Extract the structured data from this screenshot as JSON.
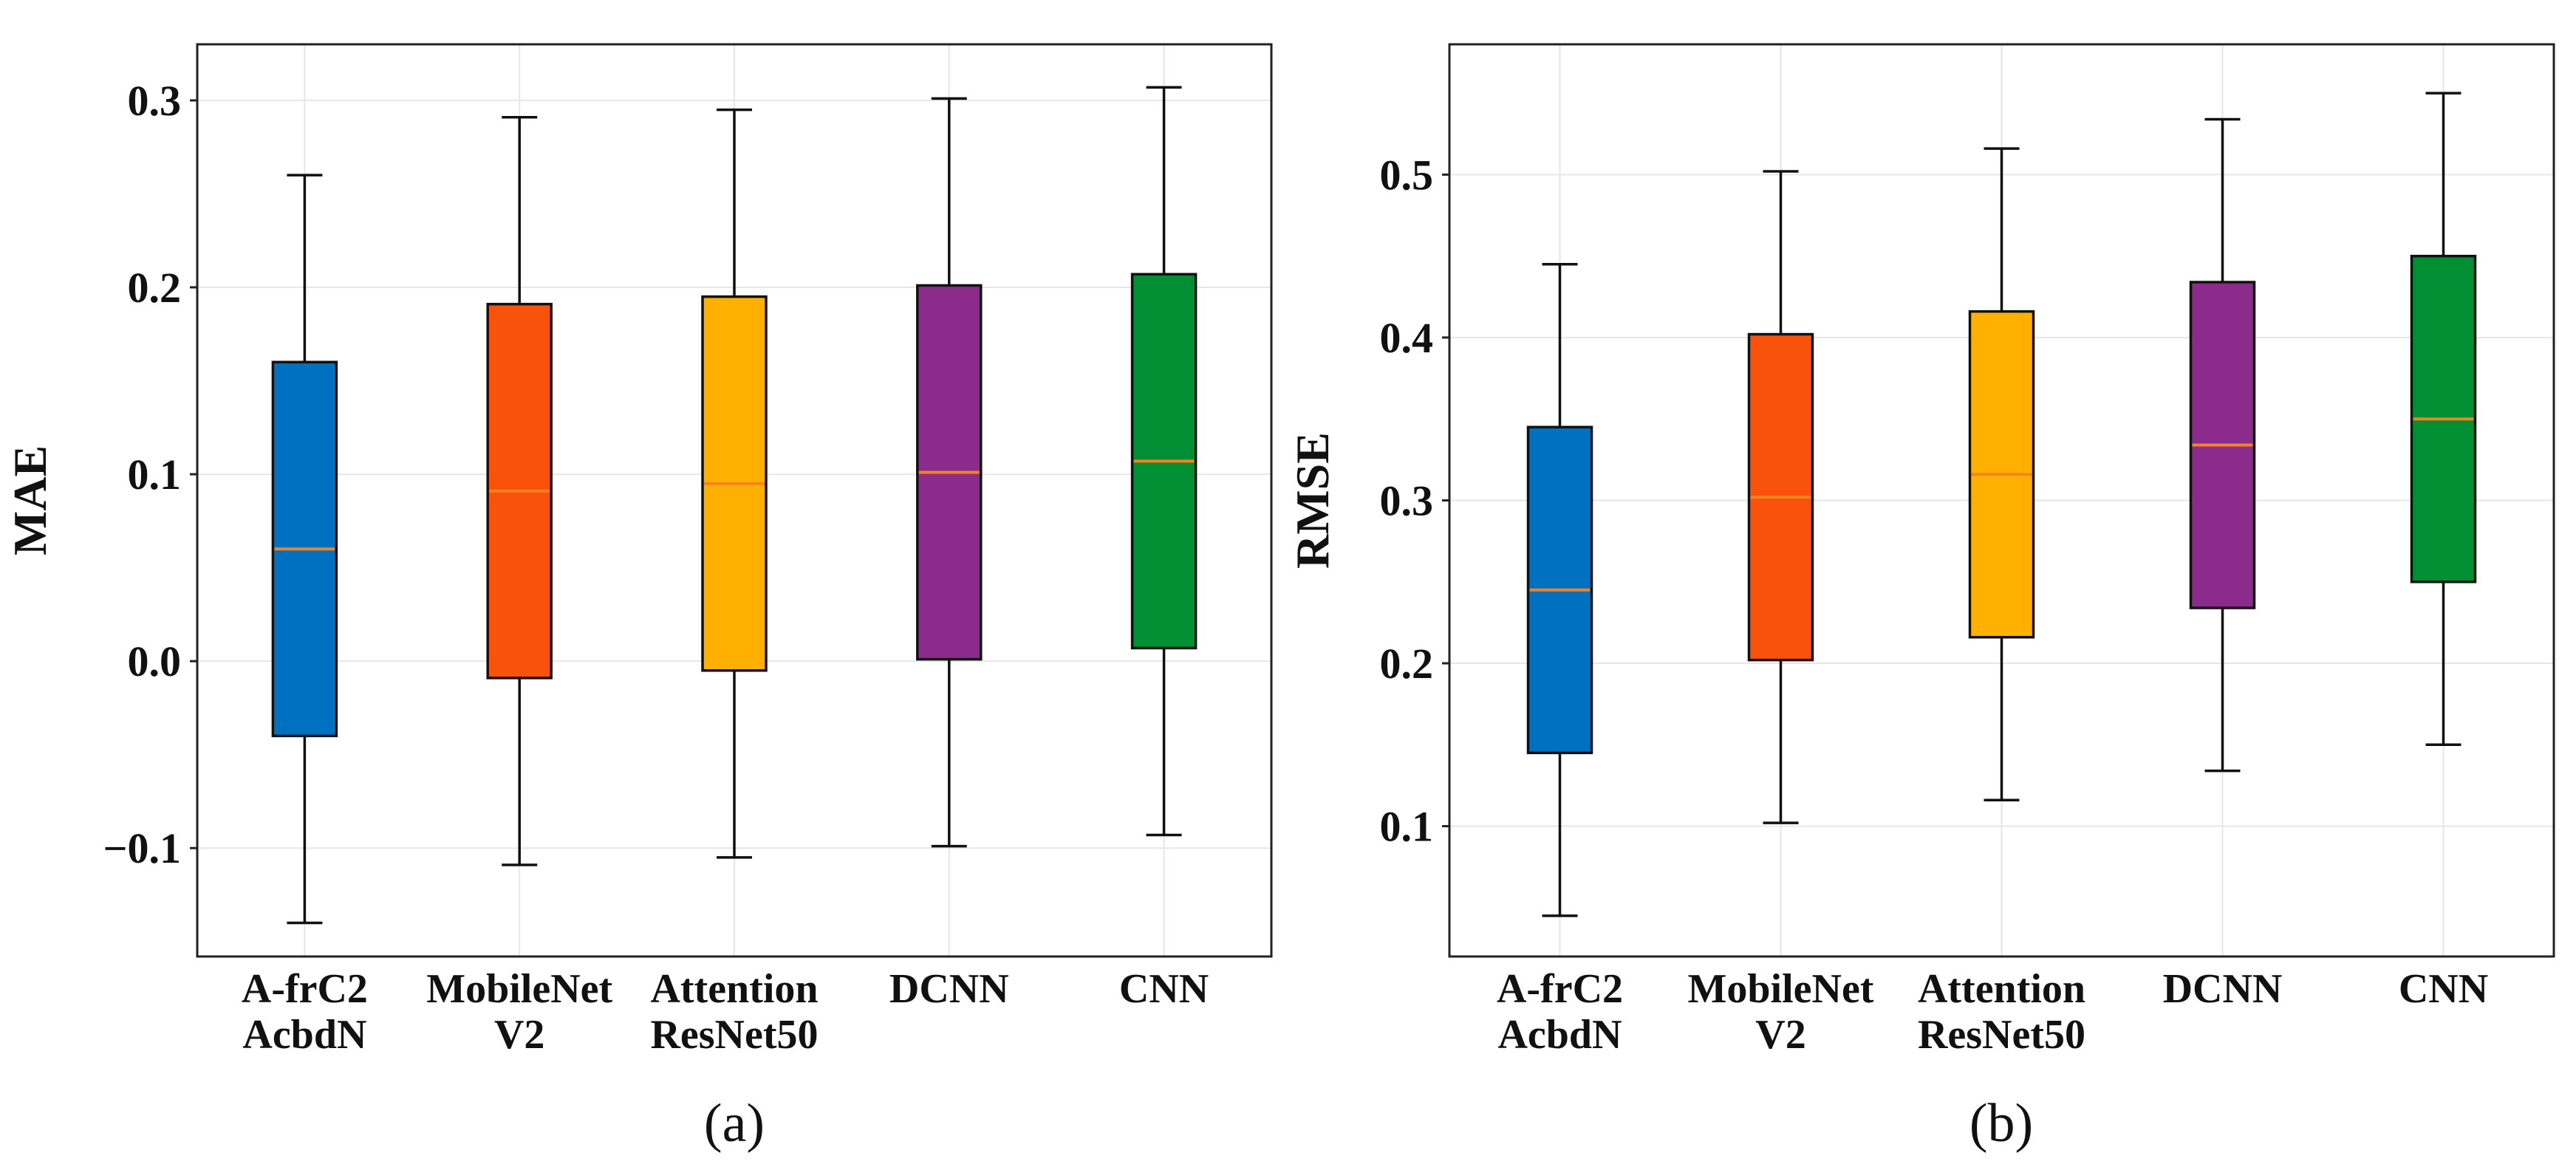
{
  "chart_data": [
    {
      "type": "boxplot",
      "panel_label": "(a)",
      "ylabel": "MAE",
      "ylim": [
        -0.158,
        0.33
      ],
      "yticks": [
        -0.1,
        0.0,
        0.1,
        0.2,
        0.3
      ],
      "ytick_labels": [
        "−0.1",
        "0.0",
        "0.1",
        "0.2",
        "0.3"
      ],
      "grid": true,
      "median_color": "#f5821f",
      "categories": [
        {
          "lines": [
            "A-frC2",
            "AcbdN"
          ],
          "color": "#0070c0",
          "whislo": -0.14,
          "q1": -0.04,
          "med": 0.06,
          "q3": 0.16,
          "whishi": 0.26
        },
        {
          "lines": [
            "MobileNet",
            "V2"
          ],
          "color": "#f9520b",
          "whislo": -0.109,
          "q1": -0.009,
          "med": 0.091,
          "q3": 0.191,
          "whishi": 0.291
        },
        {
          "lines": [
            "Attention",
            "ResNet50"
          ],
          "color": "#ffb000",
          "whislo": -0.105,
          "q1": -0.005,
          "med": 0.095,
          "q3": 0.195,
          "whishi": 0.295
        },
        {
          "lines": [
            "DCNN"
          ],
          "color": "#8b2b8b",
          "whislo": -0.099,
          "q1": 0.001,
          "med": 0.101,
          "q3": 0.201,
          "whishi": 0.301
        },
        {
          "lines": [
            "CNN"
          ],
          "color": "#009033",
          "whislo": -0.093,
          "q1": 0.007,
          "med": 0.107,
          "q3": 0.207,
          "whishi": 0.307
        }
      ]
    },
    {
      "type": "boxplot",
      "panel_label": "(b)",
      "ylabel": "RMSE",
      "ylim": [
        0.02,
        0.58
      ],
      "yticks": [
        0.1,
        0.2,
        0.3,
        0.4,
        0.5
      ],
      "ytick_labels": [
        "0.1",
        "0.2",
        "0.3",
        "0.4",
        "0.5"
      ],
      "grid": true,
      "median_color": "#f5821f",
      "categories": [
        {
          "lines": [
            "A-frC2",
            "AcbdN"
          ],
          "color": "#0070c0",
          "whislo": 0.045,
          "q1": 0.145,
          "med": 0.245,
          "q3": 0.345,
          "whishi": 0.445
        },
        {
          "lines": [
            "MobileNet",
            "V2"
          ],
          "color": "#f9520b",
          "whislo": 0.102,
          "q1": 0.202,
          "med": 0.302,
          "q3": 0.402,
          "whishi": 0.502
        },
        {
          "lines": [
            "Attention",
            "ResNet50"
          ],
          "color": "#ffb000",
          "whislo": 0.116,
          "q1": 0.216,
          "med": 0.316,
          "q3": 0.416,
          "whishi": 0.516
        },
        {
          "lines": [
            "DCNN"
          ],
          "color": "#8b2b8b",
          "whislo": 0.134,
          "q1": 0.234,
          "med": 0.334,
          "q3": 0.434,
          "whishi": 0.534
        },
        {
          "lines": [
            "CNN"
          ],
          "color": "#009033",
          "whislo": 0.15,
          "q1": 0.25,
          "med": 0.35,
          "q3": 0.45,
          "whishi": 0.55
        }
      ]
    }
  ]
}
